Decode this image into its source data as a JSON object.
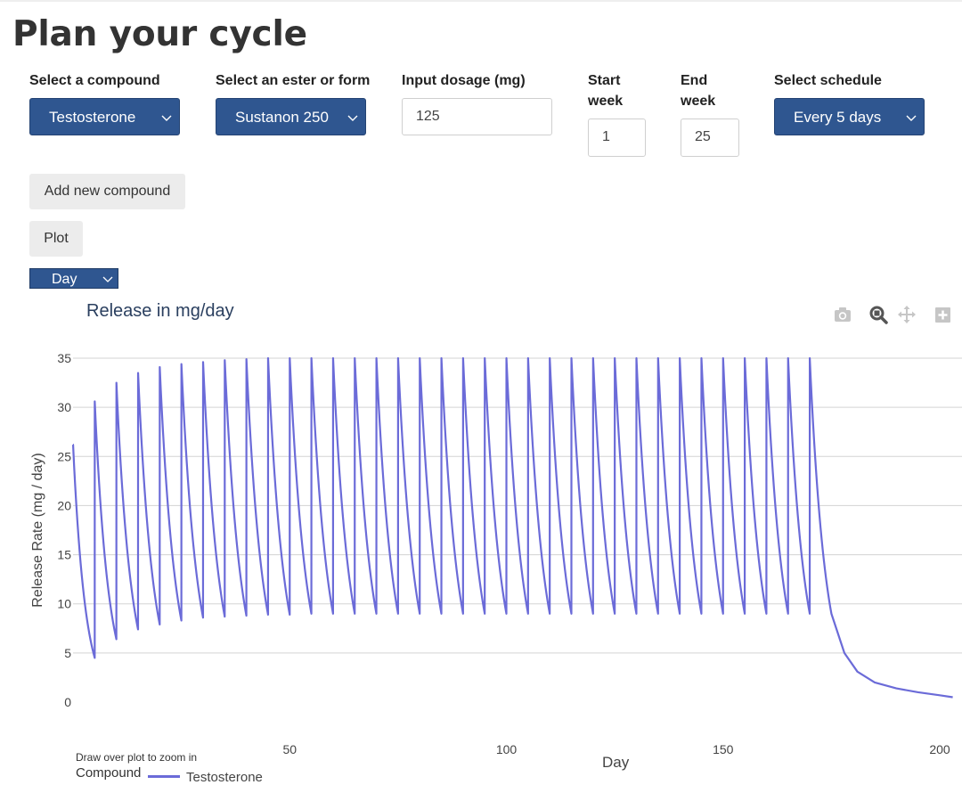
{
  "page_title": "Plan your cycle",
  "form": {
    "compound_label": "Select a compound",
    "compound_value": "Testosterone",
    "ester_label": "Select an ester or form",
    "ester_value": "Sustanon 250",
    "dosage_label": "Input dosage (mg)",
    "dosage_value": "125",
    "start_label_1": "Start",
    "start_label_2": "week",
    "start_value": "1",
    "end_label_1": "End",
    "end_label_2": "week",
    "end_value": "25",
    "schedule_label": "Select schedule",
    "schedule_value": "Every 5 days"
  },
  "buttons": {
    "add_compound": "Add new compound",
    "plot": "Plot"
  },
  "unit_select": "Day",
  "modebar_icons": [
    "camera-icon",
    "zoom-icon",
    "pan-icon",
    "zoom-in-icon"
  ],
  "chart_data": {
    "type": "line",
    "title": "Release in mg/day",
    "xlabel": "Day",
    "ylabel": "Release Rate (mg / day)",
    "xlim": [
      0,
      203
    ],
    "ylim": [
      0,
      35
    ],
    "xticks": [
      50,
      100,
      150,
      200
    ],
    "yticks": [
      0,
      5,
      10,
      15,
      20,
      25,
      30,
      35
    ],
    "grid": true,
    "legend_title": "Compound",
    "color": "#6b6bd8",
    "series": [
      {
        "name": "Testosterone",
        "injection_days": [
          0,
          5,
          10,
          15,
          20,
          25,
          30,
          35,
          40,
          45,
          50,
          55,
          60,
          65,
          70,
          75,
          80,
          85,
          90,
          95,
          100,
          105,
          110,
          115,
          120,
          125,
          130,
          135,
          140,
          145,
          150,
          155,
          160,
          165,
          170
        ],
        "peaks": [
          26.2,
          30.6,
          32.5,
          33.5,
          34.1,
          34.4,
          34.6,
          34.8,
          34.9,
          35,
          35,
          35,
          35,
          35,
          35,
          35,
          35,
          35,
          35,
          35,
          35,
          35,
          35,
          35,
          35,
          35,
          35,
          35,
          35,
          35,
          35,
          35,
          35,
          35,
          35
        ],
        "troughs": [
          4.5,
          6.4,
          7.4,
          7.9,
          8.3,
          8.6,
          8.7,
          8.8,
          8.9,
          8.9,
          9,
          9,
          9,
          9,
          9,
          9,
          9,
          9,
          9,
          9,
          9,
          9,
          9,
          9,
          9,
          9,
          9,
          9,
          9,
          9,
          9,
          9,
          9,
          9,
          9
        ],
        "tail": [
          [
            175,
            9
          ],
          [
            178,
            5.0
          ],
          [
            181,
            3.1
          ],
          [
            185,
            2.0
          ],
          [
            190,
            1.4
          ],
          [
            195,
            1.0
          ],
          [
            200,
            0.7
          ],
          [
            203,
            0.5
          ]
        ]
      }
    ]
  },
  "zoom_hint": "Draw over plot to zoom in"
}
